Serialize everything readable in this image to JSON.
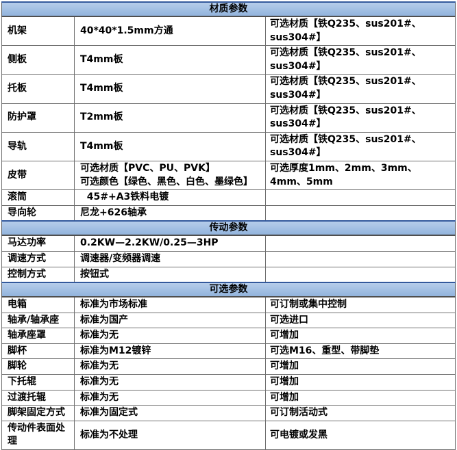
{
  "page": {
    "background": "#ffffff"
  },
  "colors": {
    "header_bg_top": "#b6cdea",
    "header_bg_bottom": "#92b4dd",
    "header_border_top": "#33599c",
    "header_border_bottom": "#4f4f4f",
    "grid_line": "#6f6f6f",
    "outer_border": "#595959",
    "text": "#000000"
  },
  "table": {
    "sections": [
      {
        "header": "材质参数",
        "rows": [
          {
            "label": "机架",
            "value": "40*40*1.5mm方通",
            "option": "可选材质【铁Q235、sus201#、sus304#】"
          },
          {
            "label": "侧板",
            "value": "T4mm板",
            "option": "可选材质【铁Q235、sus201#、sus304#】"
          },
          {
            "label": "托板",
            "value": "T4mm板",
            "option": "可选材质【铁Q235、sus201#、sus304#】"
          },
          {
            "label": "防护罩",
            "value": "T2mm板",
            "option": "可选材质【铁Q235、sus201#、sus304#】"
          },
          {
            "label": "导轨",
            "value": "T4mm板",
            "option": "可选材质【铁Q235、sus201#、sus304#】"
          },
          {
            "label": "皮带",
            "value": "可选材质【PVC、PU、PVK】\n可选颜色【绿色、黑色、白色、墨绿色】",
            "option": "可选厚度1mm、2mm、3mm、4mm、5mm"
          },
          {
            "label": "滚筒",
            "value": "  45#+A3铁料电镀",
            "option": ""
          },
          {
            "label": "导向轮",
            "value": "尼龙+626轴承",
            "option": ""
          }
        ]
      },
      {
        "header": "传动参数",
        "rows": [
          {
            "label": "马达功率",
            "value": "0.2KW—2.2KW/0.25—3HP",
            "option": ""
          },
          {
            "label": "调速方式",
            "value": "调速器/变频器调速",
            "option": ""
          },
          {
            "label": "控制方式",
            "value": "按钮式",
            "option": ""
          }
        ]
      },
      {
        "header": "可选参数",
        "rows": [
          {
            "label": "电箱",
            "value": "标准为市场标准",
            "option": "可订制或集中控制"
          },
          {
            "label": "轴承/轴承座",
            "value": "标准为国产",
            "option": "可选进口"
          },
          {
            "label": "轴承座罩",
            "value": "标准为无",
            "option": "可增加"
          },
          {
            "label": "脚杯",
            "value": "标准为M12镀锌",
            "option": "可选M16、重型、带脚垫"
          },
          {
            "label": "脚轮",
            "value": "标准为无",
            "option": "可增加"
          },
          {
            "label": "下托辊",
            "value": "标准为无",
            "option": "可增加"
          },
          {
            "label": "过渡托辊",
            "value": "标准为无",
            "option": "可增加"
          },
          {
            "label": "脚架固定方式",
            "value": "标准为固定式",
            "option": "可订制活动式"
          },
          {
            "label": "传动件表面处理",
            "value": "标准为不处理",
            "option": "可电镀或发黑"
          }
        ]
      }
    ]
  }
}
